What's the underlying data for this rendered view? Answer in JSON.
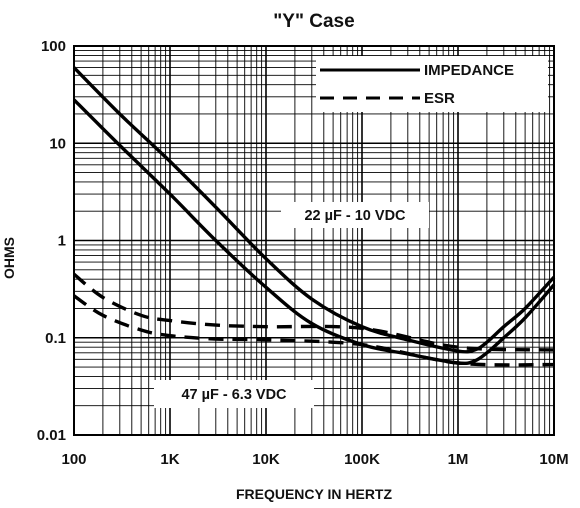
{
  "chart_data": {
    "type": "line",
    "title": "\"Y\" Case",
    "xlabel": "FREQUENCY IN HERTZ",
    "ylabel": "OHMS",
    "x_scale": "log",
    "y_scale": "log",
    "xlim": [
      100,
      10000000
    ],
    "ylim": [
      0.01,
      100
    ],
    "grid": true,
    "x_ticks": [
      100,
      1000,
      10000,
      100000,
      1000000,
      10000000
    ],
    "x_tick_labels": [
      "100",
      "1K",
      "10K",
      "100K",
      "1M",
      "10M"
    ],
    "y_ticks": [
      0.01,
      0.1,
      1,
      10,
      100
    ],
    "y_tick_labels": [
      "0.01",
      "0.1",
      "1",
      "10",
      "100"
    ],
    "legend": {
      "position": "top-right",
      "entries": [
        {
          "label": "IMPEDANCE",
          "style": "solid"
        },
        {
          "label": "ESR",
          "style": "dashed"
        }
      ]
    },
    "annotations": [
      "22 µF - 10 VDC",
      "47 µF - 6.3 VDC"
    ],
    "series": [
      {
        "name": "IMPEDANCE",
        "style": "solid",
        "x": [
          100,
          300,
          1000,
          3000,
          10000,
          30000,
          100000,
          300000,
          1000000,
          1500000,
          2000000,
          3000000,
          5000000,
          10000000
        ],
        "y": [
          60,
          20,
          6.5,
          2.2,
          0.65,
          0.25,
          0.13,
          0.095,
          0.073,
          0.075,
          0.09,
          0.13,
          0.2,
          0.42
        ]
      },
      {
        "name": "IMPEDANCE",
        "style": "solid",
        "x": [
          100,
          300,
          1000,
          3000,
          10000,
          30000,
          100000,
          300000,
          1000000,
          1500000,
          2000000,
          3000000,
          5000000,
          10000000
        ],
        "y": [
          28,
          9.5,
          3,
          1,
          0.33,
          0.14,
          0.085,
          0.068,
          0.055,
          0.058,
          0.07,
          0.1,
          0.16,
          0.35
        ]
      },
      {
        "name": "ESR",
        "style": "dashed",
        "x": [
          100,
          200,
          500,
          1000,
          3000,
          10000,
          100000,
          1000000,
          10000000
        ],
        "y": [
          0.45,
          0.26,
          0.17,
          0.15,
          0.135,
          0.13,
          0.125,
          0.08,
          0.075
        ]
      },
      {
        "name": "ESR",
        "style": "dashed",
        "x": [
          100,
          200,
          500,
          1000,
          3000,
          10000,
          100000,
          1000000,
          10000000
        ],
        "y": [
          0.27,
          0.17,
          0.12,
          0.105,
          0.097,
          0.095,
          0.085,
          0.055,
          0.053
        ]
      }
    ]
  }
}
